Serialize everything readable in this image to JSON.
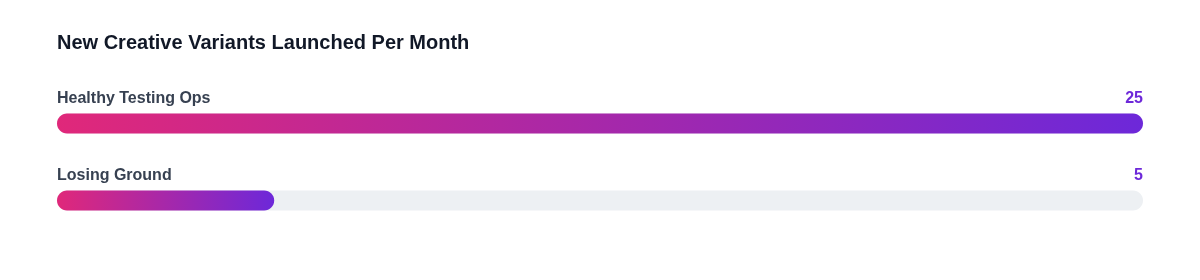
{
  "chart_data": {
    "type": "bar",
    "orientation": "horizontal",
    "title": "New Creative Variants Launched Per Month",
    "categories": [
      "Healthy Testing Ops",
      "Losing Ground"
    ],
    "values": [
      25,
      5
    ],
    "color": "#6d28d9",
    "xlim": [
      0,
      25
    ],
    "tick_labels": false,
    "data_labels": true
  }
}
